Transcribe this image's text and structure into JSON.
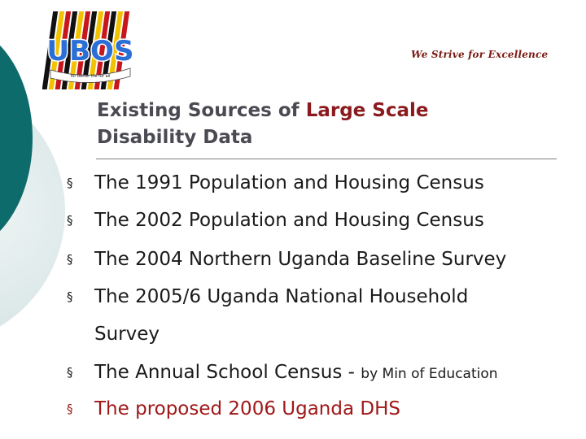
{
  "logo": {
    "text": "UBOS",
    "ribbon": "for better life for all"
  },
  "motto": "We Strive for Excellence",
  "title": {
    "part1": "Existing Sources of ",
    "part2": "Large Scale",
    "line2": "Disability Data"
  },
  "bullet_marker": "§",
  "bullets": [
    {
      "text": "The 1991 Population and Housing Census"
    },
    {
      "text": "The 2002 Population and Housing Census"
    },
    {
      "text": "The 2004 Northern Uganda Baseline Survey"
    },
    {
      "text": "The 2005/6 Uganda National Household",
      "continuation": "Survey"
    },
    {
      "text": "The Annual School Census - ",
      "small": "by Min of Education"
    },
    {
      "text": "The proposed 2006 Uganda DHS"
    }
  ],
  "colors": {
    "teal": "#0e6b6b",
    "title": "#4a4a52",
    "accent": "#8a1a1e",
    "highlight": "#a01818"
  }
}
